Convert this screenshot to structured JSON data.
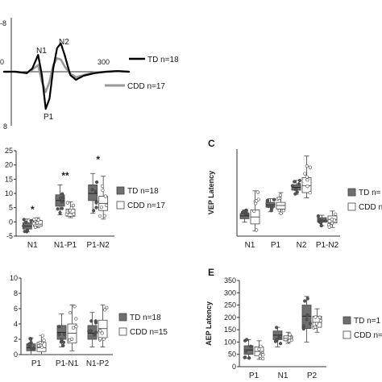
{
  "colors": {
    "td": "#6f6f6f",
    "td_line": "#000000",
    "cdd_line": "#999999",
    "cdd_box": "#ffffff",
    "axis": "#333333"
  },
  "chart_data": [
    {
      "id": "A",
      "type": "line",
      "panel_label": "",
      "xlabel": "",
      "ylabel": "",
      "y_tick_labels": [
        "-8",
        "8"
      ],
      "x_tick_labels": [
        "0",
        "300"
      ],
      "ylim": [
        8,
        -8
      ],
      "peak_labels": [
        "N1",
        "N2",
        "P1"
      ],
      "series": [
        {
          "name": "TD n=18",
          "x": [
            0,
            30,
            60,
            75,
            90,
            100,
            110,
            120,
            130,
            140,
            150,
            160,
            175,
            190,
            210,
            240,
            270,
            300,
            330
          ],
          "values": [
            0,
            0,
            0.2,
            -0.5,
            -2.5,
            0.5,
            5.5,
            4,
            -0.5,
            -3.5,
            -4.2,
            -2.5,
            0.5,
            1.2,
            0.6,
            0.2,
            0,
            -0.1,
            0
          ]
        },
        {
          "name": "CDD n=17",
          "x": [
            0,
            30,
            60,
            75,
            90,
            100,
            110,
            120,
            130,
            140,
            150,
            160,
            175,
            190,
            210,
            240,
            270,
            300,
            330
          ],
          "values": [
            0,
            0,
            0.2,
            -0.3,
            -1.0,
            1.5,
            3.0,
            1.5,
            -1.0,
            -2.0,
            -1.8,
            -0.8,
            0.3,
            0.8,
            0.5,
            0.1,
            0,
            -0.1,
            0
          ]
        }
      ]
    },
    {
      "id": "B",
      "type": "box",
      "panel_label": "",
      "ylabel": "",
      "ylim": [
        -5,
        25
      ],
      "y_ticks": [
        -5,
        0,
        5,
        10,
        15,
        20,
        25
      ],
      "categories": [
        "N1",
        "N1-P1",
        "P1-N2"
      ],
      "significance": [
        "*",
        "**",
        "*"
      ],
      "series": [
        {
          "name": "TD n=18",
          "boxes": [
            {
              "min": -3.5,
              "q1": -2.5,
              "median": -1.5,
              "q3": -0.3,
              "max": 1.0
            },
            {
              "min": 2.5,
              "q1": 5.5,
              "median": 7.5,
              "q3": 9.5,
              "max": 13.0
            },
            {
              "min": 3.0,
              "q1": 7.5,
              "median": 10.0,
              "q3": 13.0,
              "max": 17.0
            }
          ]
        },
        {
          "name": "CDD n=17",
          "boxes": [
            {
              "min": -2.0,
              "q1": -1.5,
              "median": -0.8,
              "q3": 0.5,
              "max": 1.5
            },
            {
              "min": 1.5,
              "q1": 2.0,
              "median": 3.0,
              "q3": 4.5,
              "max": 7.0
            },
            {
              "min": 1.0,
              "q1": 4.0,
              "median": 6.5,
              "q3": 9.0,
              "max": 16.0
            }
          ]
        }
      ]
    },
    {
      "id": "C",
      "type": "box",
      "panel_label": "C",
      "ylabel": "VEP Latency",
      "ylim": [
        0,
        250
      ],
      "y_ticks": [],
      "categories": [
        "N1",
        "P1",
        "N2",
        "P1-N2"
      ],
      "significance": [],
      "series": [
        {
          "name": "TD n=",
          "boxes": [
            {
              "min": 40,
              "q1": 50,
              "median": 58,
              "q3": 65,
              "max": 75
            },
            {
              "min": 70,
              "q1": 83,
              "median": 90,
              "q3": 97,
              "max": 108
            },
            {
              "min": 120,
              "q1": 132,
              "median": 140,
              "q3": 147,
              "max": 160
            },
            {
              "min": 30,
              "q1": 40,
              "median": 45,
              "q3": 53,
              "max": 60
            }
          ]
        },
        {
          "name": "CDD n=",
          "boxes": [
            {
              "min": 15,
              "q1": 35,
              "median": 55,
              "q3": 75,
              "max": 130
            },
            {
              "min": 65,
              "q1": 78,
              "median": 88,
              "q3": 97,
              "max": 125
            },
            {
              "min": 110,
              "q1": 125,
              "median": 145,
              "q3": 168,
              "max": 230
            },
            {
              "min": 25,
              "q1": 38,
              "median": 48,
              "q3": 58,
              "max": 72
            }
          ]
        }
      ]
    },
    {
      "id": "D",
      "type": "box",
      "panel_label": "",
      "ylabel": "",
      "ylim": [
        0,
        10
      ],
      "y_ticks": [
        0,
        2,
        4,
        6,
        8,
        10
      ],
      "categories": [
        "P1",
        "P1-N1",
        "N1-P2"
      ],
      "significance": [],
      "series": [
        {
          "name": "TD n=18",
          "boxes": [
            {
              "min": 0.0,
              "q1": 0.5,
              "median": 0.9,
              "q3": 1.4,
              "max": 2.2
            },
            {
              "min": 1.0,
              "q1": 2.0,
              "median": 2.9,
              "q3": 3.8,
              "max": 5.3
            },
            {
              "min": 1.0,
              "q1": 2.0,
              "median": 2.8,
              "q3": 3.8,
              "max": 5.5
            }
          ]
        },
        {
          "name": "CDD n=15",
          "boxes": [
            {
              "min": 0.0,
              "q1": 0.4,
              "median": 0.9,
              "q3": 1.6,
              "max": 2.5
            },
            {
              "min": 0.5,
              "q1": 1.5,
              "median": 2.8,
              "q3": 4.0,
              "max": 6.5
            },
            {
              "min": 1.0,
              "q1": 2.2,
              "median": 3.4,
              "q3": 4.5,
              "max": 6.5
            }
          ]
        }
      ]
    },
    {
      "id": "E",
      "type": "box",
      "panel_label": "E",
      "ylabel": "AEP Latency",
      "ylim": [
        0,
        350
      ],
      "y_ticks": [
        0,
        50,
        100,
        150,
        200,
        250,
        300,
        350
      ],
      "categories": [
        "P1",
        "N1",
        "P2"
      ],
      "significance": [],
      "series": [
        {
          "name": "TD n=1",
          "boxes": [
            {
              "min": 35,
              "q1": 50,
              "median": 68,
              "q3": 85,
              "max": 110
            },
            {
              "min": 80,
              "q1": 110,
              "median": 128,
              "q3": 145,
              "max": 160
            },
            {
              "min": 100,
              "q1": 155,
              "median": 205,
              "q3": 250,
              "max": 285
            }
          ]
        },
        {
          "name": "CDD n=1",
          "boxes": [
            {
              "min": 30,
              "q1": 45,
              "median": 62,
              "q3": 80,
              "max": 105
            },
            {
              "min": 95,
              "q1": 105,
              "median": 115,
              "q3": 125,
              "max": 140
            },
            {
              "min": 140,
              "q1": 160,
              "median": 180,
              "q3": 205,
              "max": 235
            }
          ]
        }
      ]
    }
  ]
}
